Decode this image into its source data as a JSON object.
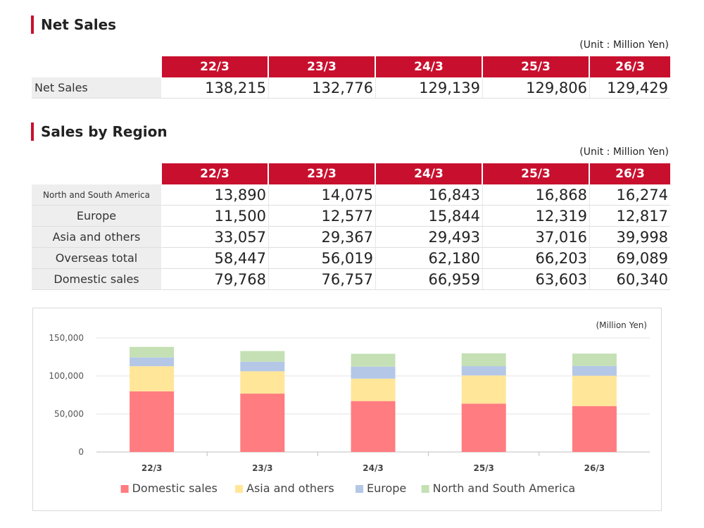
{
  "net_sales_section": {
    "title": "Net Sales",
    "unit": "(Unit : Million Yen)",
    "periods": [
      "22/3",
      "23/3",
      "24/3",
      "25/3",
      "26/3"
    ],
    "rows": [
      {
        "label": "Net Sales",
        "values": [
          "138,215",
          "132,776",
          "129,139",
          "129,806",
          "129,429"
        ]
      }
    ]
  },
  "region_section": {
    "title": "Sales by Region",
    "unit": "(Unit : Million Yen)",
    "periods": [
      "22/3",
      "23/3",
      "24/3",
      "25/3",
      "26/3"
    ],
    "rows": [
      {
        "label": "North and South America",
        "values": [
          "13,890",
          "14,075",
          "16,843",
          "16,868",
          "16,274"
        ]
      },
      {
        "label": "Europe",
        "values": [
          "11,500",
          "12,577",
          "15,844",
          "12,319",
          "12,817"
        ]
      },
      {
        "label": "Asia and others",
        "values": [
          "33,057",
          "29,367",
          "29,493",
          "37,016",
          "39,998"
        ]
      },
      {
        "label": "Overseas total",
        "values": [
          "58,447",
          "56,019",
          "62,180",
          "66,203",
          "69,089"
        ]
      },
      {
        "label": "Domestic sales",
        "values": [
          "79,768",
          "76,757",
          "66,959",
          "63,603",
          "60,340"
        ]
      }
    ]
  },
  "colors": {
    "accent": "#c8102e",
    "label_bg": "#eeeeee"
  },
  "chart_data": {
    "type": "bar",
    "stacked": true,
    "unit": "(Million Yen)",
    "categories": [
      "22/3",
      "23/3",
      "24/3",
      "25/3",
      "26/3"
    ],
    "series": [
      {
        "name": "Domestic sales",
        "color": "#ff7c80",
        "values": [
          79768,
          76757,
          66959,
          63603,
          60340
        ]
      },
      {
        "name": "Asia and others",
        "color": "#ffe699",
        "values": [
          33057,
          29367,
          29493,
          37016,
          39998
        ]
      },
      {
        "name": "Europe",
        "color": "#b4c7e7",
        "values": [
          11500,
          12577,
          15844,
          12319,
          12817
        ]
      },
      {
        "name": "North and South America",
        "color": "#c5e0b4",
        "values": [
          13890,
          14075,
          16843,
          16868,
          16274
        ]
      }
    ],
    "ylim": [
      0,
      150000
    ],
    "yticks": [
      0,
      50000,
      100000,
      150000
    ],
    "ytick_labels": [
      "0",
      "50,000",
      "100,000",
      "150,000"
    ],
    "grid": true,
    "legend_position": "bottom"
  }
}
